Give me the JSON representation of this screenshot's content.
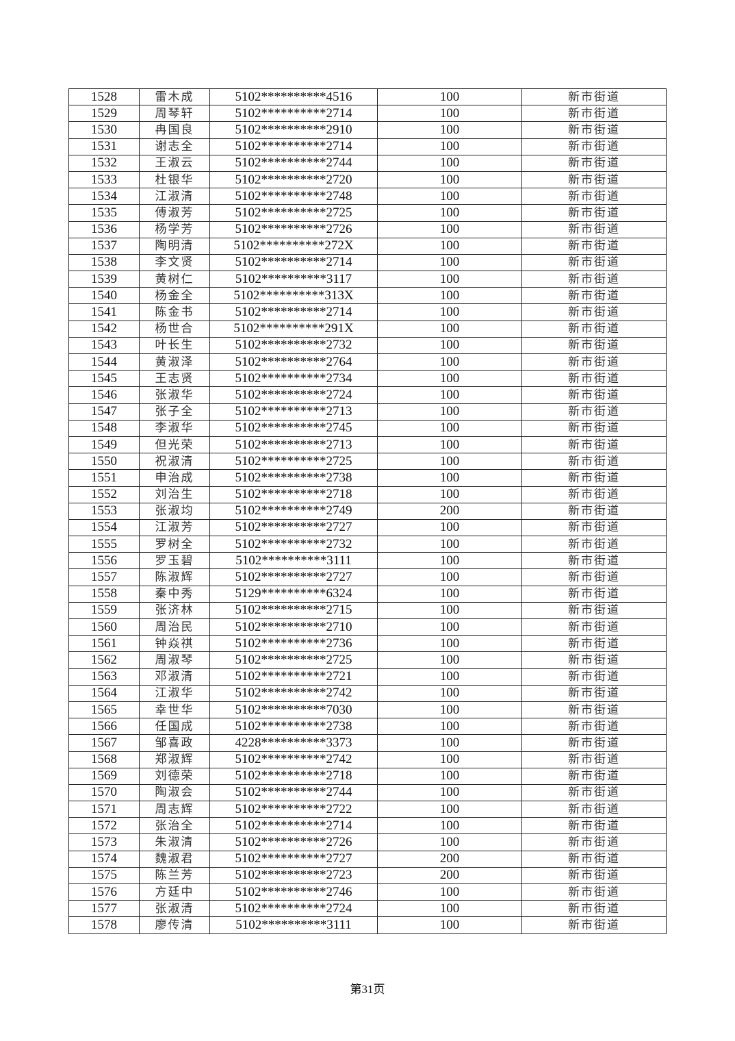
{
  "table": {
    "rows": [
      [
        "1528",
        "雷木成",
        "5102**********4516",
        "100",
        "新市街道"
      ],
      [
        "1529",
        "周琴轩",
        "5102**********2714",
        "100",
        "新市街道"
      ],
      [
        "1530",
        "冉国良",
        "5102**********2910",
        "100",
        "新市街道"
      ],
      [
        "1531",
        "谢志全",
        "5102**********2714",
        "100",
        "新市街道"
      ],
      [
        "1532",
        "王淑云",
        "5102**********2744",
        "100",
        "新市街道"
      ],
      [
        "1533",
        "杜银华",
        "5102**********2720",
        "100",
        "新市街道"
      ],
      [
        "1534",
        "江淑清",
        "5102**********2748",
        "100",
        "新市街道"
      ],
      [
        "1535",
        "傅淑芳",
        "5102**********2725",
        "100",
        "新市街道"
      ],
      [
        "1536",
        "杨学芳",
        "5102**********2726",
        "100",
        "新市街道"
      ],
      [
        "1537",
        "陶明清",
        "5102**********272X",
        "100",
        "新市街道"
      ],
      [
        "1538",
        "李文贤",
        "5102**********2714",
        "100",
        "新市街道"
      ],
      [
        "1539",
        "黄树仁",
        "5102**********3117",
        "100",
        "新市街道"
      ],
      [
        "1540",
        "杨金全",
        "5102**********313X",
        "100",
        "新市街道"
      ],
      [
        "1541",
        "陈金书",
        "5102**********2714",
        "100",
        "新市街道"
      ],
      [
        "1542",
        "杨世合",
        "5102**********291X",
        "100",
        "新市街道"
      ],
      [
        "1543",
        "叶长生",
        "5102**********2732",
        "100",
        "新市街道"
      ],
      [
        "1544",
        "黄淑泽",
        "5102**********2764",
        "100",
        "新市街道"
      ],
      [
        "1545",
        "王志贤",
        "5102**********2734",
        "100",
        "新市街道"
      ],
      [
        "1546",
        "张淑华",
        "5102**********2724",
        "100",
        "新市街道"
      ],
      [
        "1547",
        "张子全",
        "5102**********2713",
        "100",
        "新市街道"
      ],
      [
        "1548",
        "李淑华",
        "5102**********2745",
        "100",
        "新市街道"
      ],
      [
        "1549",
        "但光荣",
        "5102**********2713",
        "100",
        "新市街道"
      ],
      [
        "1550",
        "祝淑清",
        "5102**********2725",
        "100",
        "新市街道"
      ],
      [
        "1551",
        "申治成",
        "5102**********2738",
        "100",
        "新市街道"
      ],
      [
        "1552",
        "刘治生",
        "5102**********2718",
        "100",
        "新市街道"
      ],
      [
        "1553",
        "张淑均",
        "5102**********2749",
        "200",
        "新市街道"
      ],
      [
        "1554",
        "江淑芳",
        "5102**********2727",
        "100",
        "新市街道"
      ],
      [
        "1555",
        "罗树全",
        "5102**********2732",
        "100",
        "新市街道"
      ],
      [
        "1556",
        "罗玉碧",
        "5102**********3111",
        "100",
        "新市街道"
      ],
      [
        "1557",
        "陈淑辉",
        "5102**********2727",
        "100",
        "新市街道"
      ],
      [
        "1558",
        "秦中秀",
        "5129**********6324",
        "100",
        "新市街道"
      ],
      [
        "1559",
        "张济林",
        "5102**********2715",
        "100",
        "新市街道"
      ],
      [
        "1560",
        "周治民",
        "5102**********2710",
        "100",
        "新市街道"
      ],
      [
        "1561",
        "钟焱祺",
        "5102**********2736",
        "100",
        "新市街道"
      ],
      [
        "1562",
        "周淑琴",
        "5102**********2725",
        "100",
        "新市街道"
      ],
      [
        "1563",
        "邓淑清",
        "5102**********2721",
        "100",
        "新市街道"
      ],
      [
        "1564",
        "江淑华",
        "5102**********2742",
        "100",
        "新市街道"
      ],
      [
        "1565",
        "幸世华",
        "5102**********7030",
        "100",
        "新市街道"
      ],
      [
        "1566",
        "任国成",
        "5102**********2738",
        "100",
        "新市街道"
      ],
      [
        "1567",
        "邹喜政",
        "4228**********3373",
        "100",
        "新市街道"
      ],
      [
        "1568",
        "郑淑辉",
        "5102**********2742",
        "100",
        "新市街道"
      ],
      [
        "1569",
        "刘德荣",
        "5102**********2718",
        "100",
        "新市街道"
      ],
      [
        "1570",
        "陶淑会",
        "5102**********2744",
        "100",
        "新市街道"
      ],
      [
        "1571",
        "周志辉",
        "5102**********2722",
        "100",
        "新市街道"
      ],
      [
        "1572",
        "张治全",
        "5102**********2714",
        "100",
        "新市街道"
      ],
      [
        "1573",
        "朱淑清",
        "5102**********2726",
        "100",
        "新市街道"
      ],
      [
        "1574",
        "魏淑君",
        "5102**********2727",
        "200",
        "新市街道"
      ],
      [
        "1575",
        "陈兰芳",
        "5102**********2723",
        "200",
        "新市街道"
      ],
      [
        "1576",
        "方廷中",
        "5102**********2746",
        "100",
        "新市街道"
      ],
      [
        "1577",
        "张淑清",
        "5102**********2724",
        "100",
        "新市街道"
      ],
      [
        "1578",
        "廖传清",
        "5102**********3111",
        "100",
        "新市街道"
      ]
    ]
  },
  "footer": {
    "page_label": "第31页"
  }
}
